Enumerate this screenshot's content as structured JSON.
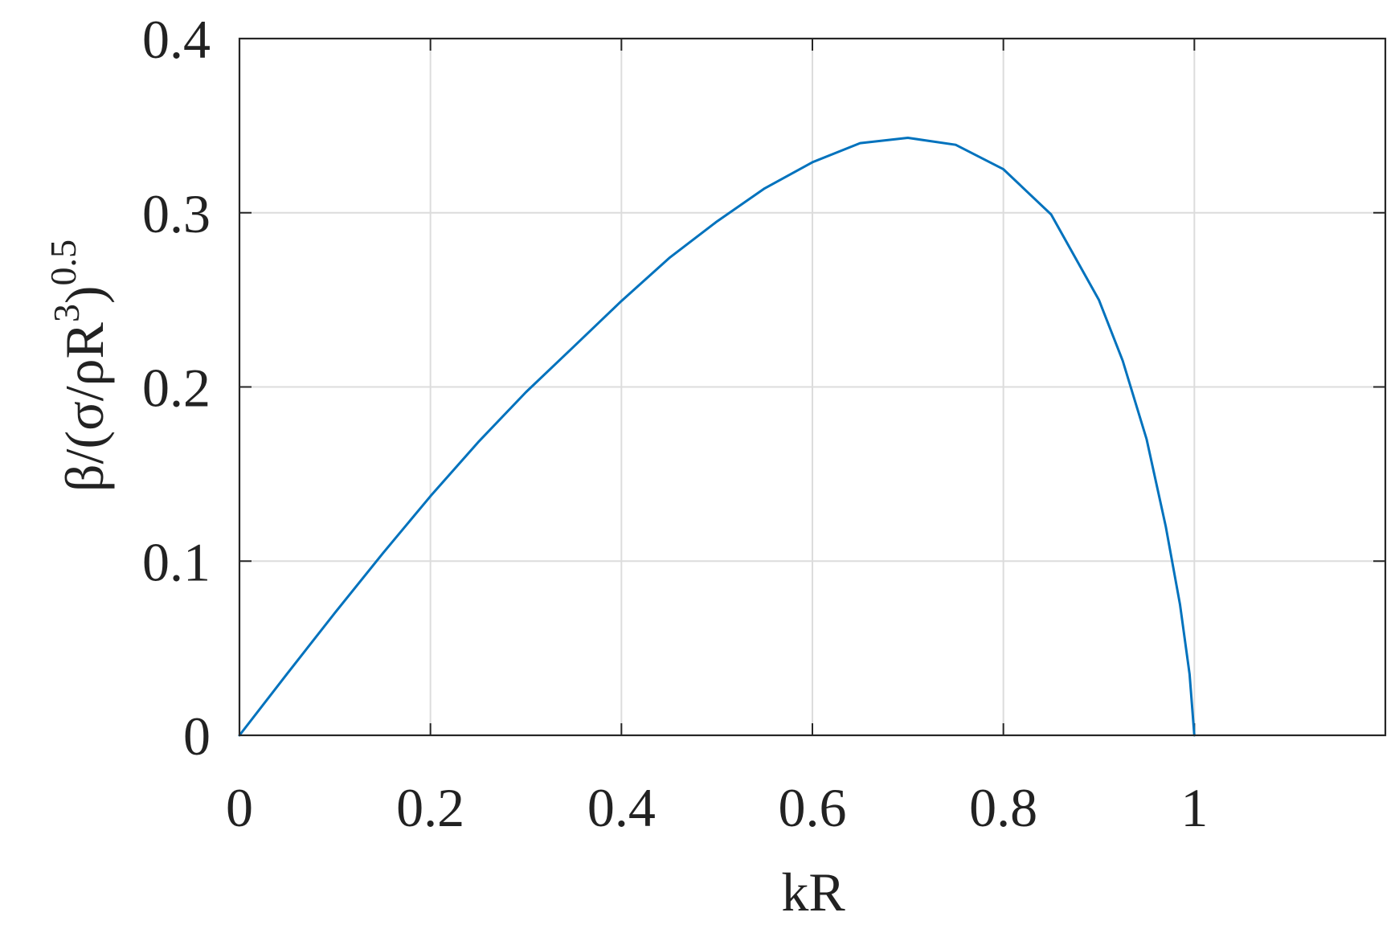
{
  "chart_data": {
    "type": "line",
    "title": "",
    "xlabel": "kR",
    "ylabel": {
      "base": "β/(σ/ρR",
      "inner_exponent": "3",
      "close": ")",
      "outer_exponent": "0.5"
    },
    "xlim": [
      0,
      1.2
    ],
    "ylim": [
      0,
      0.4
    ],
    "xticks": [
      0,
      0.2,
      0.4,
      0.6,
      0.8,
      1
    ],
    "xtick_labels": [
      "0",
      "0.2",
      "0.4",
      "0.6",
      "0.8",
      "1"
    ],
    "yticks": [
      0,
      0.1,
      0.2,
      0.3,
      0.4
    ],
    "ytick_labels": [
      "0",
      "0.1",
      "0.2",
      "0.3",
      "0.4"
    ],
    "grid": true,
    "box": true,
    "series": [
      {
        "color": "#0072BD",
        "x": [
          0,
          0.05,
          0.1,
          0.15,
          0.2,
          0.25,
          0.3,
          0.35,
          0.4,
          0.45,
          0.5,
          0.55,
          0.6,
          0.65,
          0.7,
          0.75,
          0.8,
          0.85,
          0.9,
          0.925,
          0.95,
          0.97,
          0.985,
          0.995,
          1.0
        ],
        "y": [
          0,
          0.0354,
          0.0703,
          0.1044,
          0.1373,
          0.1683,
          0.197,
          0.2231,
          0.2493,
          0.274,
          0.295,
          0.314,
          0.329,
          0.34,
          0.343,
          0.339,
          0.325,
          0.299,
          0.25,
          0.215,
          0.17,
          0.12,
          0.075,
          0.035,
          0
        ]
      }
    ]
  }
}
